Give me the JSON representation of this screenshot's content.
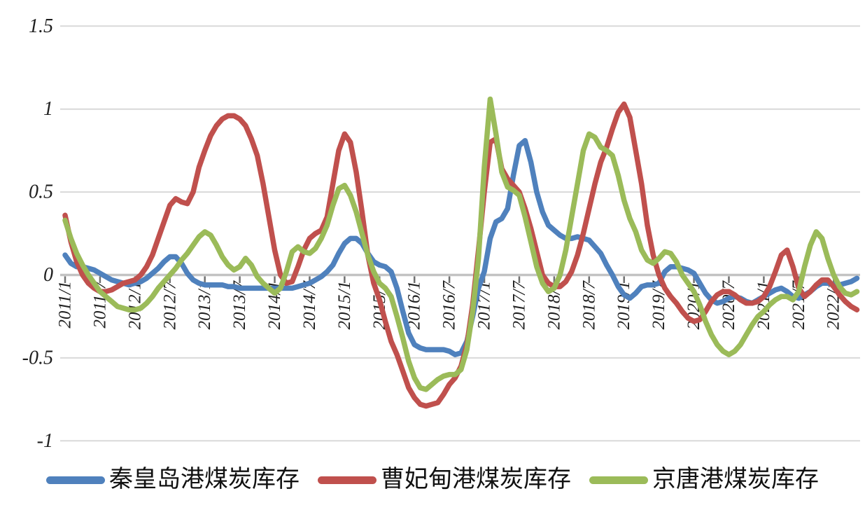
{
  "chart_data": {
    "type": "line",
    "title": "",
    "grid": true,
    "legend_position": "bottom",
    "y_ticks": [
      1.5,
      1,
      0.5,
      0,
      -0.5,
      -1
    ],
    "y_tick_labels": [
      "1.5",
      "1",
      "0.5",
      "0",
      "-0.5",
      "-1"
    ],
    "ylim": [
      -1.1,
      1.5
    ],
    "x_tick_labels": [
      "2011/1",
      "2011/7",
      "2012/1",
      "2012/7",
      "2013/1",
      "2013/7",
      "2014/1",
      "2014/7",
      "2015/1",
      "2015/7",
      "2016/1",
      "2016/7",
      "2017/1",
      "2017/7",
      "2018/1",
      "2018/7",
      "2019/1",
      "2019/7",
      "2020/1",
      "2020/7",
      "2021/1",
      "2021/7",
      "2022/1"
    ],
    "x": [
      "2011/1",
      "2011/2",
      "2011/3",
      "2011/4",
      "2011/5",
      "2011/6",
      "2011/7",
      "2011/8",
      "2011/9",
      "2011/10",
      "2011/11",
      "2011/12",
      "2012/1",
      "2012/2",
      "2012/3",
      "2012/4",
      "2012/5",
      "2012/6",
      "2012/7",
      "2012/8",
      "2012/9",
      "2012/10",
      "2012/11",
      "2012/12",
      "2013/1",
      "2013/2",
      "2013/3",
      "2013/4",
      "2013/5",
      "2013/6",
      "2013/7",
      "2013/8",
      "2013/9",
      "2013/10",
      "2013/11",
      "2013/12",
      "2014/1",
      "2014/2",
      "2014/3",
      "2014/4",
      "2014/5",
      "2014/6",
      "2014/7",
      "2014/8",
      "2014/9",
      "2014/10",
      "2014/11",
      "2014/12",
      "2015/1",
      "2015/2",
      "2015/3",
      "2015/4",
      "2015/5",
      "2015/6",
      "2015/7",
      "2015/8",
      "2015/9",
      "2015/10",
      "2015/11",
      "2015/12",
      "2016/1",
      "2016/2",
      "2016/3",
      "2016/4",
      "2016/5",
      "2016/6",
      "2016/7",
      "2016/8",
      "2016/9",
      "2016/10",
      "2016/11",
      "2016/12",
      "2017/1",
      "2017/2",
      "2017/3",
      "2017/4",
      "2017/5",
      "2017/6",
      "2017/7",
      "2017/8",
      "2017/9",
      "2017/10",
      "2017/11",
      "2017/12",
      "2018/1",
      "2018/2",
      "2018/3",
      "2018/4",
      "2018/5",
      "2018/6",
      "2018/7",
      "2018/8",
      "2018/9",
      "2018/10",
      "2018/11",
      "2018/12",
      "2019/1",
      "2019/2",
      "2019/3",
      "2019/4",
      "2019/5",
      "2019/6",
      "2019/7",
      "2019/8",
      "2019/9",
      "2019/10",
      "2019/11",
      "2019/12",
      "2020/1",
      "2020/2",
      "2020/3",
      "2020/4",
      "2020/5",
      "2020/6",
      "2020/7",
      "2020/8",
      "2020/9",
      "2020/10",
      "2020/11",
      "2020/12",
      "2021/1",
      "2021/2",
      "2021/3",
      "2021/4",
      "2021/5",
      "2021/6",
      "2021/7",
      "2021/8",
      "2021/9",
      "2021/10",
      "2021/11",
      "2021/12",
      "2022/1",
      "2022/2",
      "2022/3",
      "2022/4",
      "2022/5"
    ],
    "series": [
      {
        "key": "qinhuangdao",
        "name": "秦皇岛港煤炭库存",
        "color": "#4F81BD",
        "values": [
          0.12,
          0.07,
          0.05,
          0.05,
          0.04,
          0.03,
          0.01,
          -0.01,
          -0.03,
          -0.04,
          -0.05,
          -0.06,
          -0.05,
          -0.04,
          -0.02,
          0.01,
          0.04,
          0.08,
          0.11,
          0.11,
          0.07,
          0.01,
          -0.03,
          -0.05,
          -0.06,
          -0.06,
          -0.06,
          -0.06,
          -0.07,
          -0.07,
          -0.08,
          -0.08,
          -0.08,
          -0.08,
          -0.08,
          -0.08,
          -0.08,
          -0.08,
          -0.08,
          -0.08,
          -0.07,
          -0.06,
          -0.05,
          -0.03,
          -0.01,
          0.02,
          0.06,
          0.13,
          0.19,
          0.22,
          0.22,
          0.19,
          0.13,
          0.08,
          0.06,
          0.05,
          0.02,
          -0.08,
          -0.22,
          -0.35,
          -0.42,
          -0.44,
          -0.45,
          -0.45,
          -0.45,
          -0.45,
          -0.46,
          -0.48,
          -0.47,
          -0.4,
          -0.25,
          -0.08,
          0.02,
          0.22,
          0.32,
          0.34,
          0.4,
          0.6,
          0.78,
          0.81,
          0.68,
          0.5,
          0.38,
          0.3,
          0.27,
          0.24,
          0.22,
          0.22,
          0.23,
          0.22,
          0.21,
          0.17,
          0.13,
          0.06,
          0.0,
          -0.07,
          -0.12,
          -0.14,
          -0.11,
          -0.07,
          -0.06,
          -0.06,
          -0.05,
          0.02,
          0.05,
          0.05,
          0.04,
          0.03,
          0.01,
          -0.05,
          -0.11,
          -0.15,
          -0.17,
          -0.16,
          -0.14,
          -0.13,
          -0.14,
          -0.16,
          -0.17,
          -0.15,
          -0.13,
          -0.11,
          -0.09,
          -0.08,
          -0.1,
          -0.13,
          -0.14,
          -0.12,
          -0.1,
          -0.07,
          -0.05,
          -0.05,
          -0.06,
          -0.06,
          -0.05,
          -0.04,
          -0.02
        ]
      },
      {
        "key": "caofeidian",
        "name": "曹妃甸港煤炭库存",
        "color": "#C0504D",
        "values": [
          0.36,
          0.2,
          0.08,
          0.0,
          -0.05,
          -0.08,
          -0.1,
          -0.1,
          -0.09,
          -0.07,
          -0.05,
          -0.04,
          -0.03,
          0.0,
          0.05,
          0.12,
          0.22,
          0.32,
          0.42,
          0.46,
          0.44,
          0.43,
          0.5,
          0.65,
          0.75,
          0.84,
          0.9,
          0.94,
          0.96,
          0.96,
          0.94,
          0.9,
          0.82,
          0.72,
          0.55,
          0.35,
          0.15,
          0.0,
          -0.05,
          -0.04,
          0.05,
          0.15,
          0.22,
          0.25,
          0.27,
          0.35,
          0.55,
          0.75,
          0.85,
          0.8,
          0.62,
          0.38,
          0.12,
          -0.05,
          -0.15,
          -0.28,
          -0.4,
          -0.48,
          -0.58,
          -0.68,
          -0.74,
          -0.78,
          -0.79,
          -0.78,
          -0.77,
          -0.72,
          -0.66,
          -0.62,
          -0.55,
          -0.42,
          -0.18,
          0.15,
          0.5,
          0.8,
          0.82,
          0.64,
          0.58,
          0.54,
          0.5,
          0.4,
          0.28,
          0.14,
          0.0,
          -0.05,
          -0.07,
          -0.07,
          -0.04,
          0.02,
          0.12,
          0.25,
          0.4,
          0.55,
          0.68,
          0.77,
          0.88,
          0.98,
          1.03,
          0.95,
          0.75,
          0.55,
          0.3,
          0.12,
          0.0,
          -0.08,
          -0.13,
          -0.17,
          -0.22,
          -0.26,
          -0.28,
          -0.27,
          -0.22,
          -0.16,
          -0.12,
          -0.1,
          -0.1,
          -0.12,
          -0.15,
          -0.17,
          -0.17,
          -0.16,
          -0.13,
          -0.07,
          0.02,
          0.12,
          0.15,
          0.05,
          -0.08,
          -0.13,
          -0.1,
          -0.06,
          -0.03,
          -0.03,
          -0.07,
          -0.12,
          -0.16,
          -0.19,
          -0.21
        ]
      },
      {
        "key": "jingtang",
        "name": "京唐港煤炭库存",
        "color": "#9BBB59",
        "values": [
          0.33,
          0.22,
          0.13,
          0.06,
          0.0,
          -0.05,
          -0.1,
          -0.13,
          -0.16,
          -0.19,
          -0.2,
          -0.21,
          -0.21,
          -0.2,
          -0.17,
          -0.13,
          -0.08,
          -0.04,
          0.0,
          0.04,
          0.09,
          0.13,
          0.18,
          0.23,
          0.26,
          0.24,
          0.18,
          0.11,
          0.06,
          0.03,
          0.05,
          0.1,
          0.06,
          -0.01,
          -0.05,
          -0.08,
          -0.11,
          -0.08,
          0.02,
          0.14,
          0.17,
          0.14,
          0.13,
          0.16,
          0.22,
          0.3,
          0.42,
          0.52,
          0.54,
          0.48,
          0.38,
          0.25,
          0.12,
          0.02,
          -0.05,
          -0.08,
          -0.13,
          -0.25,
          -0.38,
          -0.52,
          -0.62,
          -0.68,
          -0.69,
          -0.66,
          -0.63,
          -0.61,
          -0.6,
          -0.6,
          -0.57,
          -0.45,
          -0.22,
          0.1,
          0.65,
          1.06,
          0.85,
          0.62,
          0.53,
          0.51,
          0.48,
          0.35,
          0.2,
          0.05,
          -0.05,
          -0.1,
          -0.08,
          0.0,
          0.15,
          0.35,
          0.55,
          0.75,
          0.85,
          0.83,
          0.77,
          0.75,
          0.72,
          0.6,
          0.45,
          0.34,
          0.26,
          0.15,
          0.09,
          0.07,
          0.1,
          0.14,
          0.13,
          0.08,
          0.0,
          -0.05,
          -0.1,
          -0.18,
          -0.28,
          -0.36,
          -0.42,
          -0.46,
          -0.48,
          -0.46,
          -0.42,
          -0.36,
          -0.3,
          -0.25,
          -0.22,
          -0.18,
          -0.15,
          -0.13,
          -0.13,
          -0.15,
          -0.1,
          0.05,
          0.18,
          0.26,
          0.22,
          0.1,
          0.0,
          -0.07,
          -0.11,
          -0.12,
          -0.1
        ]
      }
    ]
  },
  "colors": {
    "background": "#ffffff",
    "gridline": "#d9d9d9",
    "axis_line": "#c3c3c3",
    "tick_mark": "#707070",
    "axis_text": "#1f1f1f",
    "legend_text": "#111111"
  }
}
